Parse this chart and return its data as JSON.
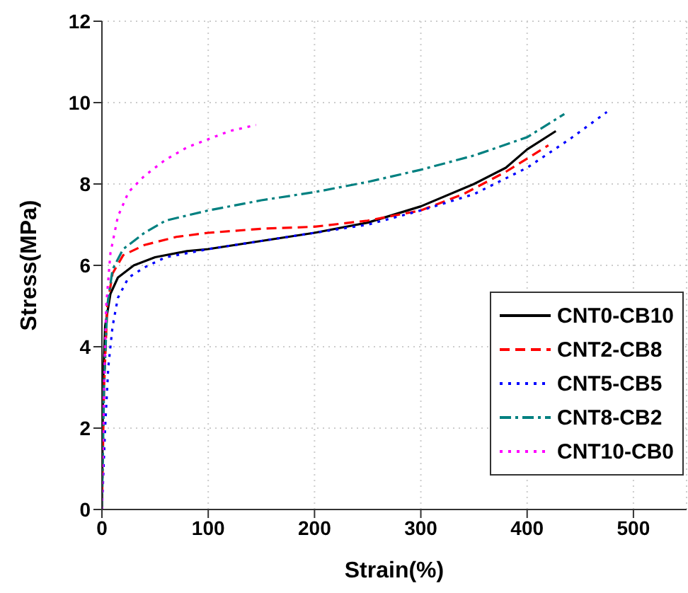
{
  "chart_data": {
    "type": "line",
    "xlabel": "Strain(%)",
    "ylabel": "Stress(MPa)",
    "xlim": [
      0,
      550
    ],
    "xticks": [
      0,
      100,
      200,
      300,
      400,
      500
    ],
    "ylim": [
      0,
      12
    ],
    "yticks": [
      0,
      2,
      4,
      6,
      8,
      10,
      12
    ],
    "grid": true,
    "legend": "bottom right",
    "marker": "none",
    "series": [
      {
        "name": "CNT0-CB10",
        "color": "#000000",
        "line_style": "solid",
        "x": [
          0,
          1,
          3,
          8,
          15,
          30,
          50,
          80,
          100,
          150,
          200,
          250,
          300,
          350,
          380,
          400,
          427
        ],
        "values": [
          0,
          3,
          4.5,
          5.3,
          5.7,
          6.0,
          6.2,
          6.35,
          6.4,
          6.6,
          6.8,
          7.05,
          7.45,
          8.0,
          8.4,
          8.85,
          9.3
        ]
      },
      {
        "name": "CNT2-CB8",
        "color": "#ff0000",
        "line_style": "dashed",
        "x": [
          0,
          2,
          5,
          10,
          20,
          40,
          70,
          100,
          150,
          200,
          250,
          300,
          340,
          380,
          420
        ],
        "values": [
          0,
          3,
          5,
          5.8,
          6.25,
          6.5,
          6.7,
          6.8,
          6.9,
          6.95,
          7.1,
          7.35,
          7.75,
          8.3,
          8.95
        ]
      },
      {
        "name": "CNT5-CB5",
        "color": "#0000ff",
        "line_style": "dotted",
        "x": [
          0,
          3,
          6,
          10,
          15,
          25,
          40,
          60,
          100,
          150,
          200,
          250,
          300,
          350,
          400,
          440,
          475
        ],
        "values": [
          0,
          2,
          3.5,
          4.5,
          5.2,
          5.7,
          5.95,
          6.2,
          6.4,
          6.6,
          6.8,
          7.0,
          7.35,
          7.75,
          8.4,
          9.1,
          9.77
        ]
      },
      {
        "name": "CNT8-CB2",
        "color": "#008080",
        "line_style": "dashdot",
        "x": [
          0,
          2,
          5,
          10,
          20,
          40,
          60,
          100,
          150,
          200,
          250,
          300,
          350,
          400,
          435
        ],
        "values": [
          0,
          3,
          5,
          5.9,
          6.4,
          6.8,
          7.1,
          7.35,
          7.6,
          7.8,
          8.05,
          8.35,
          8.7,
          9.15,
          9.72
        ]
      },
      {
        "name": "CNT10-CB0",
        "color": "#ff00ff",
        "line_style": "dotted",
        "x": [
          0,
          2,
          4,
          8,
          15,
          25,
          40,
          60,
          80,
          100,
          120,
          145
        ],
        "values": [
          0,
          3,
          5,
          6.3,
          7.2,
          7.8,
          8.2,
          8.6,
          8.9,
          9.1,
          9.3,
          9.45
        ]
      }
    ]
  }
}
